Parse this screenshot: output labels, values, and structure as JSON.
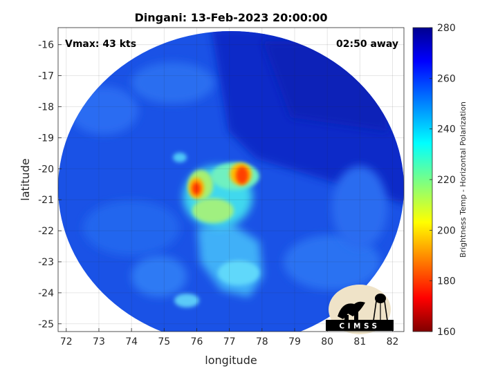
{
  "title": "Dingani: 13-Feb-2023 20:00:00",
  "vmax_label": "Vmax: 43 kts",
  "time_away_label": "02:50 away",
  "axes": {
    "xlabel": "longitude",
    "ylabel": "latitude",
    "xlim": [
      71.75,
      82.35
    ],
    "ylim": [
      -25.25,
      -15.45
    ],
    "xticks": [
      72,
      73,
      74,
      75,
      76,
      77,
      78,
      79,
      80,
      81,
      82
    ],
    "yticks": [
      -16,
      -17,
      -18,
      -19,
      -20,
      -21,
      -22,
      -23,
      -24,
      -25
    ],
    "grid": true
  },
  "colorbar": {
    "label": "Brightness Temp - Horizontal Polarization",
    "min": 160,
    "max": 280,
    "ticks": [
      160,
      180,
      200,
      220,
      240,
      260,
      280
    ],
    "colormap": "jet"
  },
  "swath": {
    "center_lon": 77.0,
    "center_lat": -20.35,
    "background_value": 258,
    "features": [
      {
        "name": "northeast convection",
        "lon": 77.4,
        "lat": -20.2,
        "value": 185
      },
      {
        "name": "west convection",
        "lon": 76.0,
        "lat": -20.65,
        "value": 190
      },
      {
        "name": "central band",
        "lon": 76.9,
        "lat": -21.5,
        "value": 215
      },
      {
        "name": "southern rainband",
        "lon": 77.2,
        "lat": -23.0,
        "value": 235
      },
      {
        "name": "cold region northeast",
        "lon": 79.0,
        "lat": -18.5,
        "value": 270
      }
    ]
  },
  "logo": {
    "text": "CIMSS",
    "colors": {
      "ellipse": "#efe3c8",
      "silhouette": "#000000",
      "text": "#ffffff"
    }
  }
}
